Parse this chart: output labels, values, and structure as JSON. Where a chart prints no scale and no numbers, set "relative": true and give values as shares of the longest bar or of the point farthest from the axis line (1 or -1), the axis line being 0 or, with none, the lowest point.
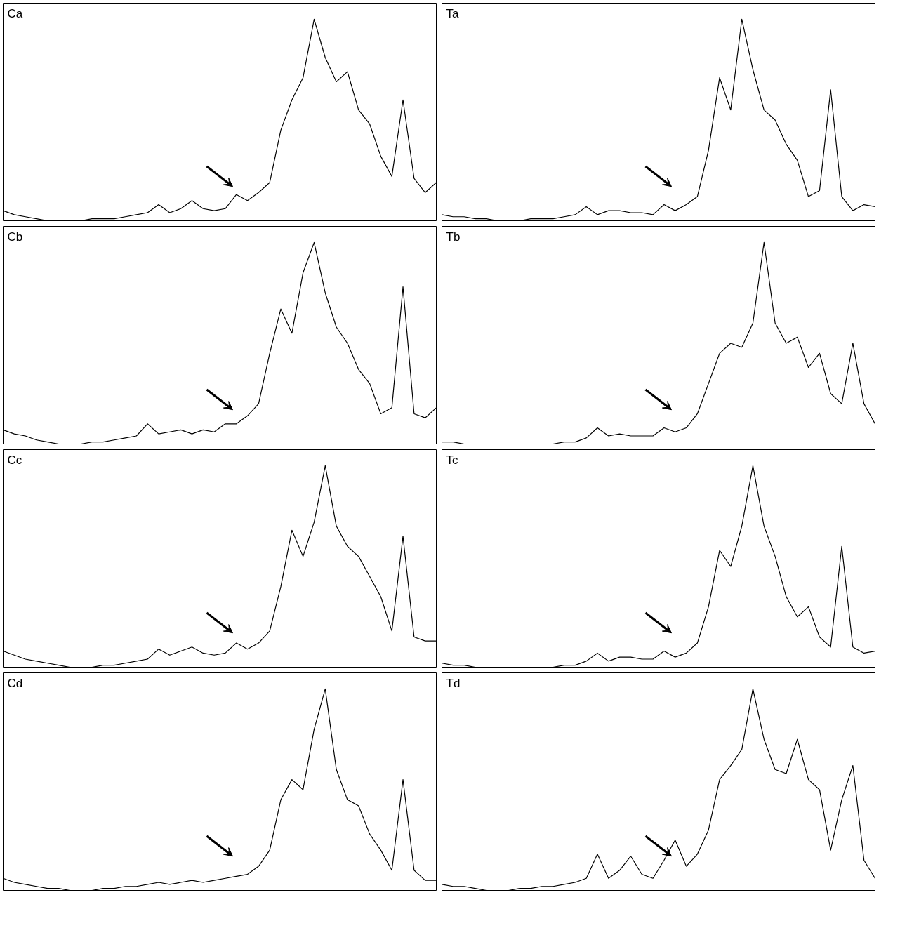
{
  "chart_data": [
    {
      "type": "line",
      "title": "Ca",
      "relative": true,
      "grid": false,
      "categories": [
        null,
        null,
        null,
        null,
        null,
        null,
        null,
        null,
        null,
        null,
        null,
        null,
        null,
        null,
        null,
        null,
        null,
        null,
        null,
        null,
        null,
        null,
        null,
        null,
        null,
        null,
        null,
        null,
        null,
        null,
        null,
        null,
        null,
        null,
        null,
        null,
        null,
        null,
        null,
        null
      ],
      "series": [
        {
          "color": "#000000",
          "values": [
            0.05,
            0.03,
            0.02,
            0.01,
            0,
            0,
            0,
            0,
            0.01,
            0.01,
            0.01,
            0.02,
            0.03,
            0.04,
            0.08,
            0.04,
            0.06,
            0.1,
            0.06,
            0.05,
            0.06,
            0.13,
            0.1,
            0.14,
            0.19,
            0.45,
            0.6,
            0.71,
            1,
            0.81,
            0.69,
            0.74,
            0.55,
            0.48,
            0.32,
            0.22,
            0.6,
            0.21,
            0.14,
            0.19
          ]
        }
      ]
    },
    {
      "type": "line",
      "title": "Ta",
      "relative": true,
      "grid": false,
      "categories": [
        null,
        null,
        null,
        null,
        null,
        null,
        null,
        null,
        null,
        null,
        null,
        null,
        null,
        null,
        null,
        null,
        null,
        null,
        null,
        null,
        null,
        null,
        null,
        null,
        null,
        null,
        null,
        null,
        null,
        null,
        null,
        null,
        null,
        null,
        null,
        null,
        null,
        null,
        null,
        null
      ],
      "series": [
        {
          "color": "#000000",
          "values": [
            0.03,
            0.02,
            0.02,
            0.01,
            0.01,
            0,
            0,
            0,
            0.01,
            0.01,
            0.01,
            0.02,
            0.03,
            0.07,
            0.03,
            0.05,
            0.05,
            0.04,
            0.04,
            0.03,
            0.08,
            0.05,
            0.08,
            0.12,
            0.35,
            0.71,
            0.55,
            1,
            0.75,
            0.55,
            0.5,
            0.38,
            0.3,
            0.12,
            0.15,
            0.65,
            0.12,
            0.05,
            0.08,
            0.07
          ]
        }
      ]
    },
    {
      "type": "line",
      "title": "Cb",
      "relative": true,
      "grid": false,
      "categories": [
        null,
        null,
        null,
        null,
        null,
        null,
        null,
        null,
        null,
        null,
        null,
        null,
        null,
        null,
        null,
        null,
        null,
        null,
        null,
        null,
        null,
        null,
        null,
        null,
        null,
        null,
        null,
        null,
        null,
        null,
        null,
        null,
        null,
        null,
        null,
        null,
        null,
        null,
        null,
        null
      ],
      "series": [
        {
          "color": "#000000",
          "values": [
            0.07,
            0.05,
            0.04,
            0.02,
            0.01,
            0,
            0,
            0,
            0.01,
            0.01,
            0.02,
            0.03,
            0.04,
            0.1,
            0.05,
            0.06,
            0.07,
            0.05,
            0.07,
            0.06,
            0.1,
            0.1,
            0.14,
            0.2,
            0.45,
            0.67,
            0.55,
            0.85,
            1,
            0.75,
            0.58,
            0.5,
            0.37,
            0.3,
            0.15,
            0.18,
            0.78,
            0.15,
            0.13,
            0.18
          ]
        }
      ]
    },
    {
      "type": "line",
      "title": "Tb",
      "relative": true,
      "grid": false,
      "categories": [
        null,
        null,
        null,
        null,
        null,
        null,
        null,
        null,
        null,
        null,
        null,
        null,
        null,
        null,
        null,
        null,
        null,
        null,
        null,
        null,
        null,
        null,
        null,
        null,
        null,
        null,
        null,
        null,
        null,
        null,
        null,
        null,
        null,
        null,
        null,
        null,
        null,
        null,
        null,
        null
      ],
      "series": [
        {
          "color": "#000000",
          "values": [
            0.01,
            0.01,
            0,
            0,
            0,
            0,
            0,
            0,
            0,
            0,
            0,
            0.01,
            0.01,
            0.03,
            0.08,
            0.04,
            0.05,
            0.04,
            0.04,
            0.04,
            0.08,
            0.06,
            0.08,
            0.15,
            0.3,
            0.45,
            0.5,
            0.48,
            0.6,
            1,
            0.6,
            0.5,
            0.53,
            0.38,
            0.45,
            0.25,
            0.2,
            0.5,
            0.2,
            0.1
          ]
        }
      ]
    },
    {
      "type": "line",
      "title": "Cc",
      "relative": true,
      "grid": false,
      "categories": [
        null,
        null,
        null,
        null,
        null,
        null,
        null,
        null,
        null,
        null,
        null,
        null,
        null,
        null,
        null,
        null,
        null,
        null,
        null,
        null,
        null,
        null,
        null,
        null,
        null,
        null,
        null,
        null,
        null,
        null,
        null,
        null,
        null,
        null,
        null,
        null,
        null,
        null,
        null,
        null
      ],
      "series": [
        {
          "color": "#000000",
          "values": [
            0.08,
            0.06,
            0.04,
            0.03,
            0.02,
            0.01,
            0,
            0,
            0,
            0.01,
            0.01,
            0.02,
            0.03,
            0.04,
            0.09,
            0.06,
            0.08,
            0.1,
            0.07,
            0.06,
            0.07,
            0.12,
            0.09,
            0.12,
            0.18,
            0.4,
            0.68,
            0.55,
            0.72,
            1,
            0.7,
            0.6,
            0.55,
            0.45,
            0.35,
            0.18,
            0.65,
            0.15,
            0.13,
            0.13
          ]
        }
      ]
    },
    {
      "type": "line",
      "title": "Tc",
      "relative": true,
      "grid": false,
      "categories": [
        null,
        null,
        null,
        null,
        null,
        null,
        null,
        null,
        null,
        null,
        null,
        null,
        null,
        null,
        null,
        null,
        null,
        null,
        null,
        null,
        null,
        null,
        null,
        null,
        null,
        null,
        null,
        null,
        null,
        null,
        null,
        null,
        null,
        null,
        null,
        null,
        null,
        null,
        null,
        null
      ],
      "series": [
        {
          "color": "#000000",
          "values": [
            0.02,
            0.01,
            0.01,
            0,
            0,
            0,
            0,
            0,
            0,
            0,
            0,
            0.01,
            0.01,
            0.03,
            0.07,
            0.03,
            0.05,
            0.05,
            0.04,
            0.04,
            0.08,
            0.05,
            0.07,
            0.12,
            0.3,
            0.58,
            0.5,
            0.7,
            1,
            0.7,
            0.55,
            0.35,
            0.25,
            0.3,
            0.15,
            0.1,
            0.6,
            0.1,
            0.07,
            0.08
          ]
        }
      ]
    },
    {
      "type": "line",
      "title": "Cd",
      "relative": true,
      "grid": false,
      "categories": [
        null,
        null,
        null,
        null,
        null,
        null,
        null,
        null,
        null,
        null,
        null,
        null,
        null,
        null,
        null,
        null,
        null,
        null,
        null,
        null,
        null,
        null,
        null,
        null,
        null,
        null,
        null,
        null,
        null,
        null,
        null,
        null,
        null,
        null,
        null,
        null,
        null,
        null,
        null,
        null
      ],
      "series": [
        {
          "color": "#000000",
          "values": [
            0.06,
            0.04,
            0.03,
            0.02,
            0.01,
            0.01,
            0,
            0,
            0,
            0.01,
            0.01,
            0.02,
            0.02,
            0.03,
            0.04,
            0.03,
            0.04,
            0.05,
            0.04,
            0.05,
            0.06,
            0.07,
            0.08,
            0.12,
            0.2,
            0.45,
            0.55,
            0.5,
            0.8,
            1,
            0.6,
            0.45,
            0.42,
            0.28,
            0.2,
            0.1,
            0.55,
            0.1,
            0.05,
            0.05
          ]
        }
      ]
    },
    {
      "type": "line",
      "title": "Td",
      "relative": true,
      "grid": false,
      "categories": [
        null,
        null,
        null,
        null,
        null,
        null,
        null,
        null,
        null,
        null,
        null,
        null,
        null,
        null,
        null,
        null,
        null,
        null,
        null,
        null,
        null,
        null,
        null,
        null,
        null,
        null,
        null,
        null,
        null,
        null,
        null,
        null,
        null,
        null,
        null,
        null,
        null,
        null,
        null,
        null
      ],
      "series": [
        {
          "color": "#000000",
          "values": [
            0.03,
            0.02,
            0.02,
            0.01,
            0,
            0,
            0,
            0.01,
            0.01,
            0.02,
            0.02,
            0.03,
            0.04,
            0.06,
            0.18,
            0.06,
            0.1,
            0.17,
            0.08,
            0.06,
            0.15,
            0.25,
            0.12,
            0.18,
            0.3,
            0.55,
            0.62,
            0.7,
            1,
            0.75,
            0.6,
            0.58,
            0.75,
            0.55,
            0.5,
            0.2,
            0.45,
            0.62,
            0.15,
            0.06
          ]
        }
      ]
    }
  ]
}
